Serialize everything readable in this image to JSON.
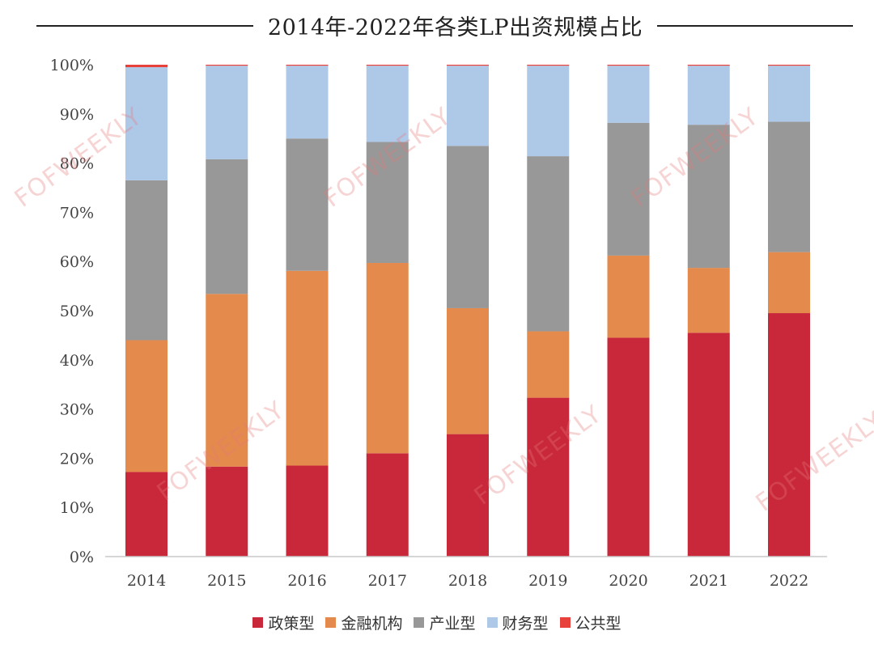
{
  "title": "2014年-2022年各类LP出资规模占比",
  "watermark_text": "FOFWEEKLY",
  "chart_data": {
    "type": "bar",
    "stacked": true,
    "categories": [
      "2014",
      "2015",
      "2016",
      "2017",
      "2018",
      "2019",
      "2020",
      "2021",
      "2022"
    ],
    "y_ticks": [
      "0%",
      "10%",
      "20%",
      "30%",
      "40%",
      "50%",
      "60%",
      "70%",
      "80%",
      "90%",
      "100%"
    ],
    "ylim": [
      0,
      100
    ],
    "grid": false,
    "legend_position": "bottom",
    "series": [
      {
        "name": "政策型",
        "color": "#C9283A",
        "values": [
          17.2,
          18.3,
          18.5,
          21.0,
          24.9,
          32.3,
          44.5,
          45.5,
          49.5
        ]
      },
      {
        "name": "金融机构",
        "color": "#E48A4C",
        "values": [
          26.8,
          35.1,
          39.6,
          38.7,
          25.6,
          13.5,
          16.7,
          13.2,
          12.4
        ]
      },
      {
        "name": "产业型",
        "color": "#989898",
        "values": [
          32.5,
          27.4,
          26.9,
          24.6,
          33.0,
          35.6,
          27.0,
          29.1,
          26.5
        ]
      },
      {
        "name": "财务型",
        "color": "#AEC8E8",
        "values": [
          23.0,
          19.0,
          14.8,
          15.5,
          16.3,
          18.4,
          11.6,
          12.0,
          11.4
        ]
      },
      {
        "name": "公共型",
        "color": "#E8403A",
        "values": [
          0.5,
          0.2,
          0.2,
          0.2,
          0.2,
          0.2,
          0.2,
          0.2,
          0.2
        ]
      }
    ]
  }
}
